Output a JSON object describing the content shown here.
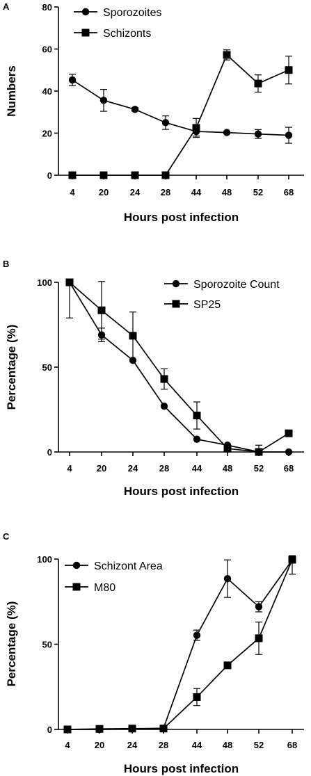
{
  "chart_data": [
    {
      "panel": "A",
      "type": "line",
      "categories": [
        "4",
        "20",
        "24",
        "28",
        "44",
        "48",
        "52",
        "68"
      ],
      "xlabel": "Hours post infection",
      "ylabel": "Numbers",
      "ylim": [
        0,
        80
      ],
      "yticks": [
        0,
        20,
        40,
        60,
        80
      ],
      "legend_position": "top-left",
      "grid": false,
      "series": [
        {
          "name": "Sporozoites",
          "marker": "circle",
          "values": [
            45.3,
            35.6,
            31.3,
            25.0,
            20.8,
            20.3,
            19.6,
            19.0
          ],
          "errors": [
            2.7,
            5.2,
            0.8,
            3.2,
            2.2,
            0.5,
            2.1,
            3.8
          ]
        },
        {
          "name": "Schizonts",
          "marker": "square",
          "values": [
            0,
            0,
            0,
            0,
            22.5,
            57.2,
            43.6,
            50.0
          ],
          "errors": [
            0,
            0,
            0,
            0,
            4.5,
            2.4,
            4.1,
            6.6
          ]
        }
      ]
    },
    {
      "panel": "B",
      "type": "line",
      "categories": [
        "4",
        "20",
        "24",
        "28",
        "44",
        "48",
        "52",
        "68"
      ],
      "xlabel": "Hours post infection",
      "ylabel": "Percentage (%)",
      "ylim": [
        0,
        100
      ],
      "yticks": [
        0,
        50,
        100
      ],
      "legend_position": "top-right",
      "grid": false,
      "series": [
        {
          "name": "Sporozoite Count",
          "marker": "circle",
          "values": [
            100,
            69,
            54,
            27,
            7.5,
            4,
            0,
            0
          ],
          "errors": [
            0,
            4,
            0,
            0,
            0,
            0,
            0,
            0
          ]
        },
        {
          "name": "SP25",
          "marker": "square",
          "values": [
            100,
            83.5,
            68.5,
            43,
            21.5,
            2,
            0,
            11
          ],
          "errors": [
            21,
            17,
            14,
            6,
            8,
            2,
            4,
            0
          ]
        }
      ]
    },
    {
      "panel": "C",
      "type": "line",
      "categories": [
        "4",
        "20",
        "24",
        "28",
        "44",
        "48",
        "52",
        "68"
      ],
      "xlabel": "Hours post infection",
      "ylabel": "Percentage (%)",
      "ylim": [
        0,
        100
      ],
      "yticks": [
        0,
        50,
        100
      ],
      "legend_position": "top-left",
      "grid": false,
      "series": [
        {
          "name": "Schizont Area",
          "marker": "circle",
          "values": [
            0,
            0,
            0.3,
            0.7,
            55.3,
            88.5,
            72,
            99.4
          ],
          "errors": [
            0,
            0,
            0,
            0,
            3,
            11,
            3,
            0
          ]
        },
        {
          "name": "M80",
          "marker": "square",
          "values": [
            0,
            0.3,
            0.5,
            0.5,
            19,
            37.6,
            53.5,
            99.6
          ],
          "errors": [
            0,
            0,
            0,
            0,
            5,
            0,
            9.5,
            8.5
          ]
        }
      ]
    }
  ]
}
